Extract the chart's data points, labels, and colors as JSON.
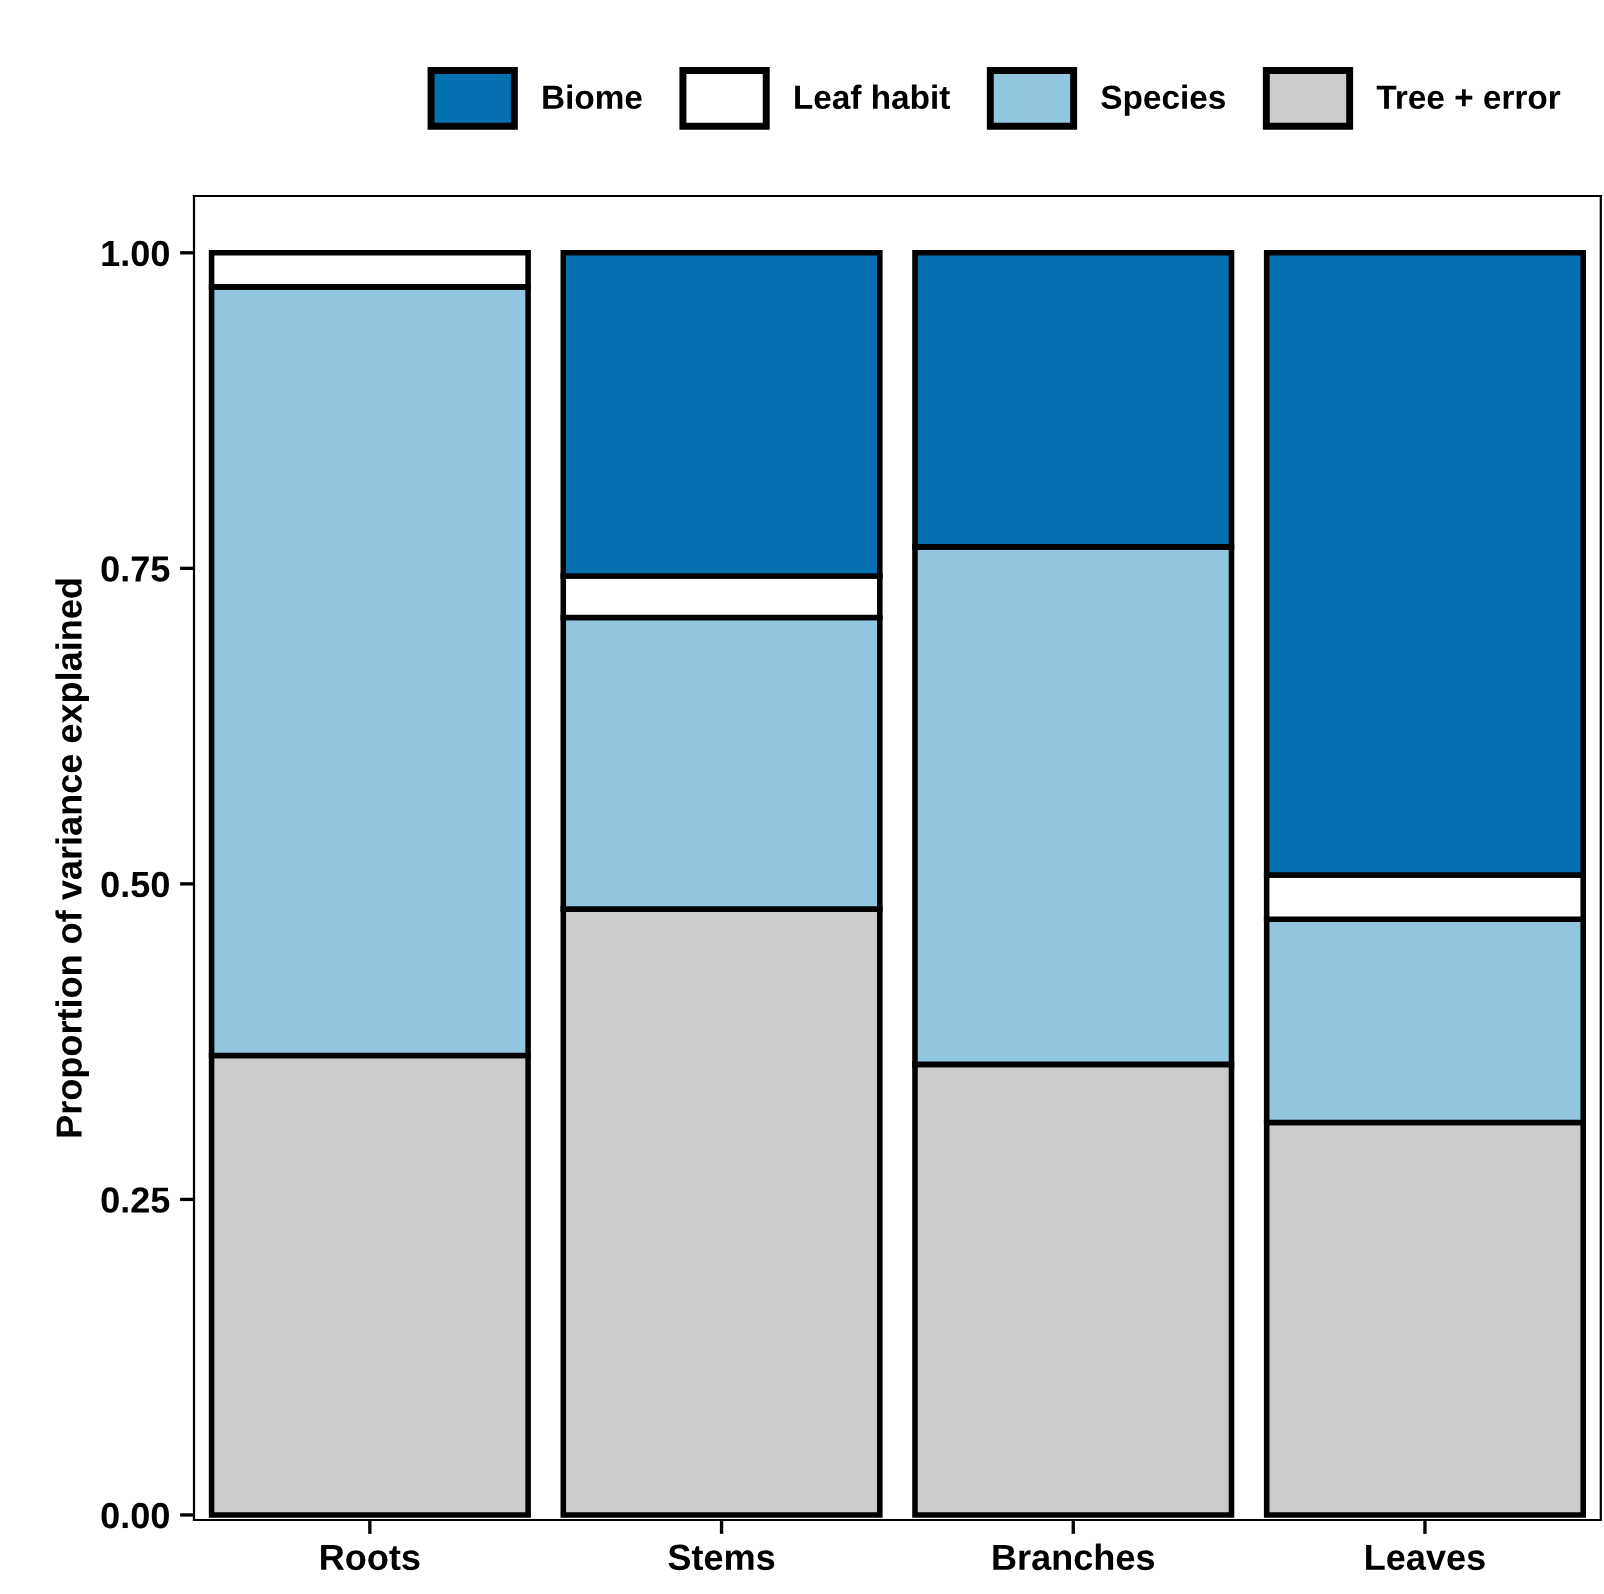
{
  "chart_data": {
    "type": "bar",
    "stacked": true,
    "ylabel": "Proportion of variance explained",
    "categories": [
      "Roots",
      "Stems",
      "Branches",
      "Leaves"
    ],
    "series": [
      {
        "name": "Tree + error",
        "color": "#cccccc",
        "values": [
          0.364,
          0.48,
          0.357,
          0.311
        ]
      },
      {
        "name": "Species",
        "color": "#92c5de",
        "values": [
          0.609,
          0.231,
          0.41,
          0.161
        ]
      },
      {
        "name": "Leaf habit",
        "color": "#ffffff",
        "values": [
          0.027,
          0.033,
          null,
          0.035
        ]
      },
      {
        "name": "Biome",
        "color": "#0570b0",
        "values": [
          null,
          0.256,
          0.233,
          0.493
        ]
      }
    ],
    "ylim": [
      -0.004,
      1.045
    ],
    "yticks": [
      {
        "value": 0,
        "label": "0.00"
      },
      {
        "value": 0.25,
        "label": "0.25"
      },
      {
        "value": 0.5,
        "label": "0.50"
      },
      {
        "value": 0.75,
        "label": "0.75"
      },
      {
        "value": 1,
        "label": "1.00"
      }
    ],
    "grid": false,
    "legend": "top"
  }
}
